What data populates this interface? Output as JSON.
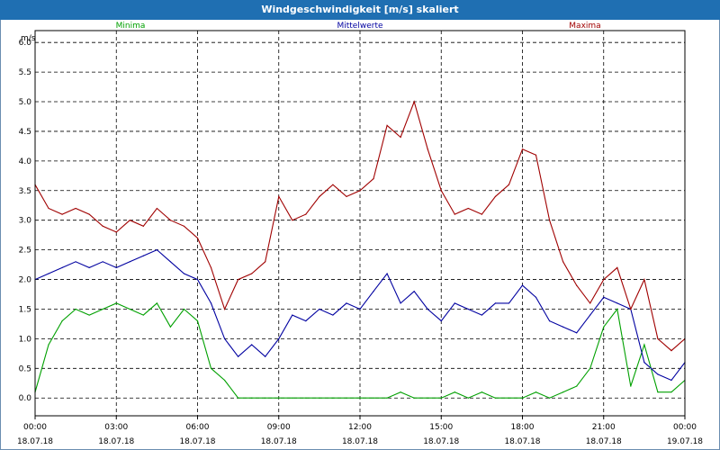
{
  "window": {
    "title": "Windgeschwindigkeit [m/s] skaliert"
  },
  "chart_data": {
    "type": "line",
    "title": "Windgeschwindigkeit [m/s] skaliert",
    "ylabel": "m/s",
    "ylim": [
      -0.3,
      6.2
    ],
    "grid": true,
    "legend_position": "top",
    "y_ticks": [
      "0.0",
      "0.5",
      "1.0",
      "1.5",
      "2.0",
      "2.5",
      "3.0",
      "3.5",
      "4.0",
      "4.5",
      "5.0",
      "5.5",
      "6.0"
    ],
    "x_ticks": [
      {
        "time": "00:00",
        "date": "18.07.18"
      },
      {
        "time": "03:00",
        "date": "18.07.18"
      },
      {
        "time": "06:00",
        "date": "18.07.18"
      },
      {
        "time": "09:00",
        "date": "18.07.18"
      },
      {
        "time": "12:00",
        "date": "18.07.18"
      },
      {
        "time": "15:00",
        "date": "18.07.18"
      },
      {
        "time": "18:00",
        "date": "18.07.18"
      },
      {
        "time": "21:00",
        "date": "18.07.18"
      },
      {
        "time": "00:00",
        "date": "19.07.18"
      }
    ],
    "x_hours": [
      0,
      0.5,
      1,
      1.5,
      2,
      2.5,
      3,
      3.5,
      4,
      4.5,
      5,
      5.5,
      6,
      6.5,
      7,
      7.5,
      8,
      8.5,
      9,
      9.5,
      10,
      10.5,
      11,
      11.5,
      12,
      12.5,
      13,
      13.5,
      14,
      14.5,
      15,
      15.5,
      16,
      16.5,
      17,
      17.5,
      18,
      18.5,
      19,
      19.5,
      20,
      20.5,
      21,
      21.5,
      22,
      22.5,
      23,
      23.5,
      24
    ],
    "series": [
      {
        "name": "Minima",
        "color": "#00a000",
        "values": [
          0.1,
          0.9,
          1.3,
          1.5,
          1.4,
          1.5,
          1.6,
          1.5,
          1.4,
          1.6,
          1.2,
          1.5,
          1.3,
          0.5,
          0.3,
          0.0,
          0.0,
          0.0,
          0.0,
          0.0,
          0.0,
          0.0,
          0.0,
          0.0,
          0.0,
          0.0,
          0.0,
          0.1,
          0.0,
          0.0,
          0.0,
          0.1,
          0.0,
          0.1,
          0.0,
          0.0,
          0.0,
          0.1,
          0.0,
          0.1,
          0.2,
          0.5,
          1.2,
          1.5,
          0.2,
          0.9,
          0.1,
          0.1,
          0.3
        ]
      },
      {
        "name": "Mittelwerte",
        "color": "#0000a0",
        "values": [
          2.0,
          2.1,
          2.2,
          2.3,
          2.2,
          2.3,
          2.2,
          2.3,
          2.4,
          2.5,
          2.3,
          2.1,
          2.0,
          1.6,
          1.0,
          0.7,
          0.9,
          0.7,
          1.0,
          1.4,
          1.3,
          1.5,
          1.4,
          1.6,
          1.5,
          1.8,
          2.1,
          1.6,
          1.8,
          1.5,
          1.3,
          1.6,
          1.5,
          1.4,
          1.6,
          1.6,
          1.9,
          1.7,
          1.3,
          1.2,
          1.1,
          1.4,
          1.7,
          1.6,
          1.5,
          0.6,
          0.4,
          0.3,
          0.6
        ]
      },
      {
        "name": "Maxima",
        "color": "#a00000",
        "values": [
          3.6,
          3.2,
          3.1,
          3.2,
          3.1,
          2.9,
          2.8,
          3.0,
          2.9,
          3.2,
          3.0,
          2.9,
          2.7,
          2.2,
          1.5,
          2.0,
          2.1,
          2.3,
          3.4,
          3.0,
          3.1,
          3.4,
          3.6,
          3.4,
          3.5,
          3.7,
          4.6,
          4.4,
          5.0,
          4.2,
          3.5,
          3.1,
          3.2,
          3.1,
          3.4,
          3.6,
          4.2,
          4.1,
          3.0,
          2.3,
          1.9,
          1.6,
          2.0,
          2.2,
          1.5,
          2.0,
          1.0,
          0.8,
          1.0
        ]
      }
    ]
  }
}
